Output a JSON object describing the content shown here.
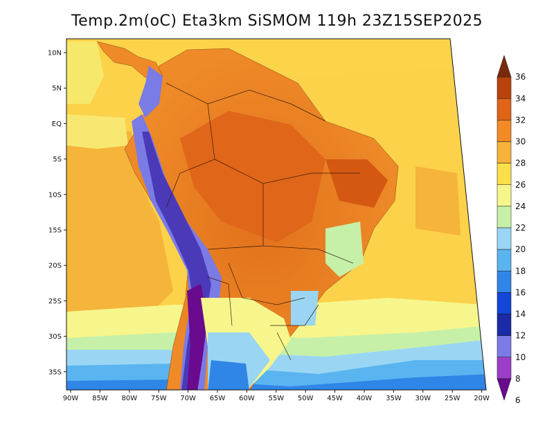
{
  "title": "Temp.2m(oC) Eta3km SiSMOM 119h 23Z15SEP2025",
  "map": {
    "lat_labels": [
      "10N",
      "5N",
      "EQ",
      "5S",
      "10S",
      "15S",
      "20S",
      "25S",
      "30S",
      "35S"
    ],
    "lon_labels": [
      "90W",
      "85W",
      "80W",
      "75W",
      "70W",
      "65W",
      "60W",
      "55W",
      "50W",
      "45W",
      "40W",
      "35W",
      "30W",
      "25W",
      "20W"
    ]
  },
  "colorbar": {
    "levels": [
      "6",
      "8",
      "10",
      "12",
      "14",
      "16",
      "18",
      "20",
      "22",
      "24",
      "26",
      "28",
      "30",
      "32",
      "34",
      "36"
    ],
    "colors": [
      "#6a0a8e",
      "#9b3fc8",
      "#7b7be6",
      "#1a2aa8",
      "#1446d8",
      "#2f86e6",
      "#5ab4f0",
      "#9ad6f4",
      "#c6f0a8",
      "#f6f68c",
      "#fbe04c",
      "#f7b23a",
      "#f28a26",
      "#e06418",
      "#b8440c",
      "#7a2a0c"
    ]
  }
}
